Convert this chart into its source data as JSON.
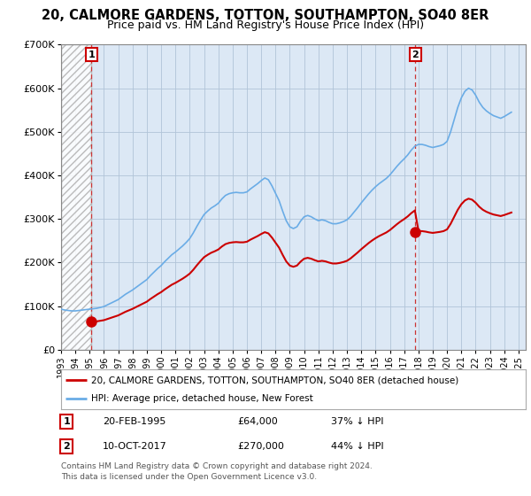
{
  "title": "20, CALMORE GARDENS, TOTTON, SOUTHAMPTON, SO40 8ER",
  "subtitle": "Price paid vs. HM Land Registry's House Price Index (HPI)",
  "title_fontsize": 10.5,
  "subtitle_fontsize": 9,
  "plot_bg": "#dce8f5",
  "grid_color": "#b0c4d8",
  "ylim": [
    0,
    700000
  ],
  "yticks": [
    0,
    100000,
    200000,
    300000,
    400000,
    500000,
    600000,
    700000
  ],
  "ytick_labels": [
    "£0",
    "£100K",
    "£200K",
    "£300K",
    "£400K",
    "£500K",
    "£600K",
    "£700K"
  ],
  "xlim_start": 1993.0,
  "xlim_end": 2025.5,
  "xticks": [
    1993,
    1994,
    1995,
    1996,
    1997,
    1998,
    1999,
    2000,
    2001,
    2002,
    2003,
    2004,
    2005,
    2006,
    2007,
    2008,
    2009,
    2010,
    2011,
    2012,
    2013,
    2014,
    2015,
    2016,
    2017,
    2018,
    2019,
    2020,
    2021,
    2022,
    2023,
    2024,
    2025
  ],
  "sale1_x": 1995.13,
  "sale1_y": 64000,
  "sale1_label": "1",
  "sale2_x": 2017.78,
  "sale2_y": 270000,
  "sale2_label": "2",
  "red_line_color": "#cc0000",
  "blue_line_color": "#6aace6",
  "marker_color": "#cc0000",
  "dashed_vline_color": "#cc3333",
  "legend_line1": "20, CALMORE GARDENS, TOTTON, SOUTHAMPTON, SO40 8ER (detached house)",
  "legend_line2": "HPI: Average price, detached house, New Forest",
  "annotation1_date": "20-FEB-1995",
  "annotation1_price": "£64,000",
  "annotation1_hpi": "37% ↓ HPI",
  "annotation2_date": "10-OCT-2017",
  "annotation2_price": "£270,000",
  "annotation2_hpi": "44% ↓ HPI",
  "footer": "Contains HM Land Registry data © Crown copyright and database right 2024.\nThis data is licensed under the Open Government Licence v3.0.",
  "hpi_data_x": [
    1993.0,
    1993.25,
    1993.5,
    1993.75,
    1994.0,
    1994.25,
    1994.5,
    1994.75,
    1995.0,
    1995.25,
    1995.5,
    1995.75,
    1996.0,
    1996.25,
    1996.5,
    1996.75,
    1997.0,
    1997.25,
    1997.5,
    1997.75,
    1998.0,
    1998.25,
    1998.5,
    1998.75,
    1999.0,
    1999.25,
    1999.5,
    1999.75,
    2000.0,
    2000.25,
    2000.5,
    2000.75,
    2001.0,
    2001.25,
    2001.5,
    2001.75,
    2002.0,
    2002.25,
    2002.5,
    2002.75,
    2003.0,
    2003.25,
    2003.5,
    2003.75,
    2004.0,
    2004.25,
    2004.5,
    2004.75,
    2005.0,
    2005.25,
    2005.5,
    2005.75,
    2006.0,
    2006.25,
    2006.5,
    2006.75,
    2007.0,
    2007.25,
    2007.5,
    2007.75,
    2008.0,
    2008.25,
    2008.5,
    2008.75,
    2009.0,
    2009.25,
    2009.5,
    2009.75,
    2010.0,
    2010.25,
    2010.5,
    2010.75,
    2011.0,
    2011.25,
    2011.5,
    2011.75,
    2012.0,
    2012.25,
    2012.5,
    2012.75,
    2013.0,
    2013.25,
    2013.5,
    2013.75,
    2014.0,
    2014.25,
    2014.5,
    2014.75,
    2015.0,
    2015.25,
    2015.5,
    2015.75,
    2016.0,
    2016.25,
    2016.5,
    2016.75,
    2017.0,
    2017.25,
    2017.5,
    2017.75,
    2018.0,
    2018.25,
    2018.5,
    2018.75,
    2019.0,
    2019.25,
    2019.5,
    2019.75,
    2020.0,
    2020.25,
    2020.5,
    2020.75,
    2021.0,
    2021.25,
    2021.5,
    2021.75,
    2022.0,
    2022.25,
    2022.5,
    2022.75,
    2023.0,
    2023.25,
    2023.5,
    2023.75,
    2024.0,
    2024.25,
    2024.5
  ],
  "hpi_data_y": [
    93000,
    91000,
    90000,
    89000,
    89000,
    90000,
    91000,
    92000,
    93000,
    94000,
    95000,
    97000,
    99000,
    103000,
    107000,
    111000,
    115000,
    121000,
    127000,
    132000,
    137000,
    143000,
    149000,
    155000,
    161000,
    170000,
    178000,
    186000,
    193000,
    202000,
    210000,
    218000,
    224000,
    231000,
    238000,
    246000,
    255000,
    268000,
    283000,
    297000,
    310000,
    318000,
    325000,
    330000,
    336000,
    346000,
    354000,
    358000,
    360000,
    361000,
    360000,
    360000,
    362000,
    369000,
    375000,
    381000,
    388000,
    394000,
    390000,
    376000,
    359000,
    342000,
    318000,
    296000,
    282000,
    278000,
    282000,
    295000,
    305000,
    308000,
    305000,
    300000,
    296000,
    298000,
    296000,
    292000,
    289000,
    289000,
    291000,
    294000,
    298000,
    306000,
    316000,
    326000,
    337000,
    347000,
    357000,
    366000,
    374000,
    381000,
    387000,
    393000,
    401000,
    411000,
    421000,
    430000,
    438000,
    447000,
    458000,
    467000,
    471000,
    471000,
    469000,
    466000,
    464000,
    466000,
    468000,
    471000,
    478000,
    500000,
    528000,
    556000,
    578000,
    593000,
    600000,
    596000,
    584000,
    568000,
    556000,
    548000,
    542000,
    537000,
    534000,
    531000,
    535000,
    540000,
    545000
  ]
}
